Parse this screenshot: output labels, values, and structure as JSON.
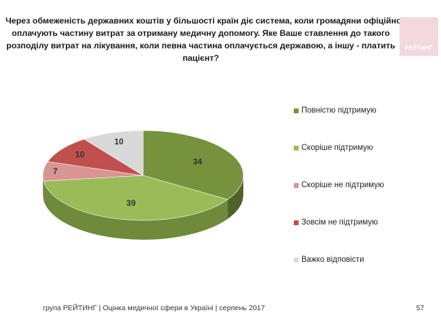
{
  "title_lines": [
    "Через обмеженість державних коштів у більшості країн діє система, коли громадяни офіційно",
    "оплачують частину витрат за отриману медичну допомогу. Яке Ваше ставлення до такого",
    "розподілу витрат на лікування, коли певна частина оплачується державою, а іншу - платить",
    "пацієнт?"
  ],
  "logo": {
    "text": "РЕЙТИНГ",
    "color": "#f4d9dc"
  },
  "footer": {
    "text": "група РЕЙТИНГ  |  Оцінка медичної сфери в Україні  |  серпень 2017",
    "page_number": "57"
  },
  "chart_data": {
    "type": "pie",
    "style": "3d",
    "legend_position": "right",
    "categories": [
      "Повністю підтримую",
      "Скоріше підтримую",
      "Скоріше не підтримую",
      "Зовсім не підтримую",
      "Важко відповісти"
    ],
    "values": [
      34,
      39,
      7,
      10,
      10
    ],
    "labels": [
      "34",
      "39",
      "7",
      "10",
      "10"
    ],
    "colors": [
      "#76923c",
      "#9bbb59",
      "#d99594",
      "#c0504d",
      "#d9d9d9"
    ],
    "side_colors": [
      "#4f6228",
      "#6f8a3a",
      "#b26f6e",
      "#8e3a38",
      "#a6a6a6"
    ]
  }
}
